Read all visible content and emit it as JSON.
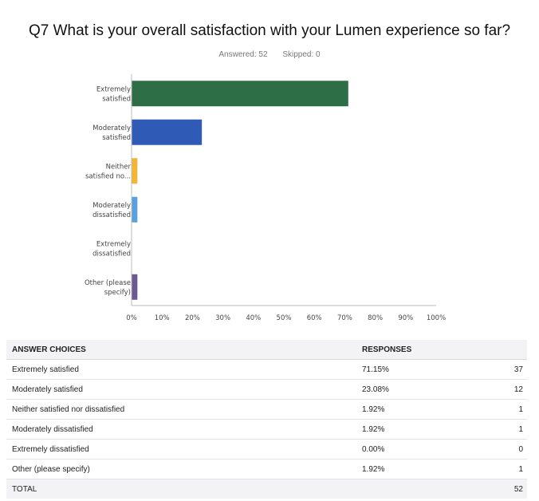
{
  "header": {
    "title": "Q7 What is your overall satisfaction with your Lumen experience so far?",
    "answered": "Answered: 52",
    "skipped": "Skipped: 0"
  },
  "chart_data": {
    "type": "bar",
    "orientation": "horizontal",
    "categories": [
      [
        "Extremely",
        "satisfied"
      ],
      [
        "Moderately",
        "satisfied"
      ],
      [
        "Neither",
        "satisfied no..."
      ],
      [
        "Moderately",
        "dissatisfied"
      ],
      [
        "Extremely",
        "dissatisfied"
      ],
      [
        "Other (please",
        "specify)"
      ]
    ],
    "values": [
      71.15,
      23.08,
      1.92,
      1.92,
      0.0,
      1.92
    ],
    "colors": [
      "#2e6e46",
      "#2f5bb7",
      "#f2b632",
      "#5aa0de",
      "#7a7a7a",
      "#6a5a8f"
    ],
    "xticks": [
      "0%",
      "10%",
      "20%",
      "30%",
      "40%",
      "50%",
      "60%",
      "70%",
      "80%",
      "90%",
      "100%"
    ],
    "xlim": [
      0,
      100
    ],
    "grid": false
  },
  "table": {
    "headers": [
      "ANSWER CHOICES",
      "RESPONSES"
    ],
    "rows": [
      {
        "choice": "Extremely satisfied",
        "percent": "71.15%",
        "count": "37"
      },
      {
        "choice": "Moderately satisfied",
        "percent": "23.08%",
        "count": "12"
      },
      {
        "choice": "Neither satisfied nor dissatisfied",
        "percent": "1.92%",
        "count": "1"
      },
      {
        "choice": "Moderately dissatisfied",
        "percent": "1.92%",
        "count": "1"
      },
      {
        "choice": "Extremely dissatisfied",
        "percent": "0.00%",
        "count": "0"
      },
      {
        "choice": "Other (please specify)",
        "percent": "1.92%",
        "count": "1"
      }
    ],
    "total_label": "TOTAL",
    "total_count": "52"
  }
}
